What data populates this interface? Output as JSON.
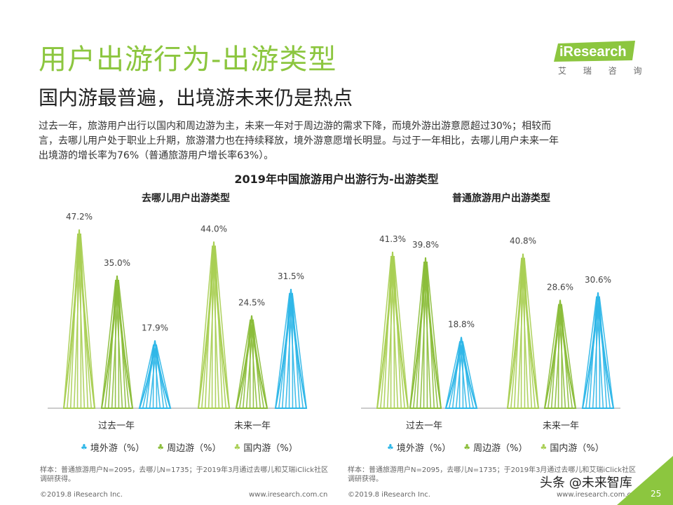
{
  "header": {
    "title": "用户出游行为-出游类型",
    "subtitle": "国内游最普遍，出境游未来仍是热点"
  },
  "logo": {
    "brand": "iResearch",
    "sub": "艾 瑞 咨 询"
  },
  "body": {
    "lines": [
      "过去一年，旅游用户出行以国内和周边游为主，未来一年对于周边游的需求下降，而境外游出游意愿超过30%；相较而",
      "言，去哪儿用户处于职业上升期，旅游潜力也在持续释放，境外游意愿增长明显。与过于一年相比，去哪儿用户未来一年",
      "出境游的增长率为76%（普通旅游用户增长率63%）。"
    ]
  },
  "chart_data": {
    "title": "2019年中国旅游用户出游行为-出游类型",
    "panels": [
      {
        "type": "bar",
        "title": "去哪儿用户出游类型",
        "categories": [
          "过去一年",
          "未来一年"
        ],
        "series": [
          {
            "name": "国内游（%）",
            "values": [
              47.2,
              44.0
            ],
            "labels": [
              "47.2%",
              "44.0%"
            ]
          },
          {
            "name": "周边游（%）",
            "values": [
              35.0,
              24.5
            ],
            "labels": [
              "35.0%",
              "24.5%"
            ]
          },
          {
            "name": "境外游（%）",
            "values": [
              17.9,
              31.5
            ],
            "labels": [
              "17.9%",
              "31.5%"
            ]
          }
        ],
        "ylim": [
          0,
          50
        ]
      },
      {
        "type": "bar",
        "title": "普通旅游用户出游类型",
        "categories": [
          "过去一年",
          "未来一年"
        ],
        "series": [
          {
            "name": "国内游（%）",
            "values": [
              41.3,
              40.8
            ],
            "labels": [
              "41.3%",
              "40.8%"
            ]
          },
          {
            "name": "周边游（%）",
            "values": [
              39.8,
              28.6
            ],
            "labels": [
              "39.8%",
              "28.6%"
            ]
          },
          {
            "name": "境外游（%）",
            "values": [
              18.8,
              30.6
            ],
            "labels": [
              "18.8%",
              "30.6%"
            ]
          }
        ],
        "ylim": [
          0,
          50
        ]
      }
    ],
    "legend": [
      "境外游（%）",
      "周边游（%）",
      "国内游（%）"
    ],
    "colors": {
      "国内游（%）": "#a9cf54",
      "周边游（%）": "#8bbd3a",
      "境外游（%）": "#2fb7e8"
    }
  },
  "sources": [
    "样本：普通旅游用户N=2095，去哪儿N=1735；于2019年3月通过去哪儿和艾瑞iClick社区调研获得。",
    "样本：普通旅游用户N=2095，去哪儿N=1735；于2019年3月通过去哪儿和艾瑞iClick社区调研获得。"
  ],
  "footer": {
    "copyright": "©2019.8 iResearch Inc.",
    "url": "www.iresearch.com.cn",
    "page": "25",
    "watermark": "头条 @未来智库"
  }
}
